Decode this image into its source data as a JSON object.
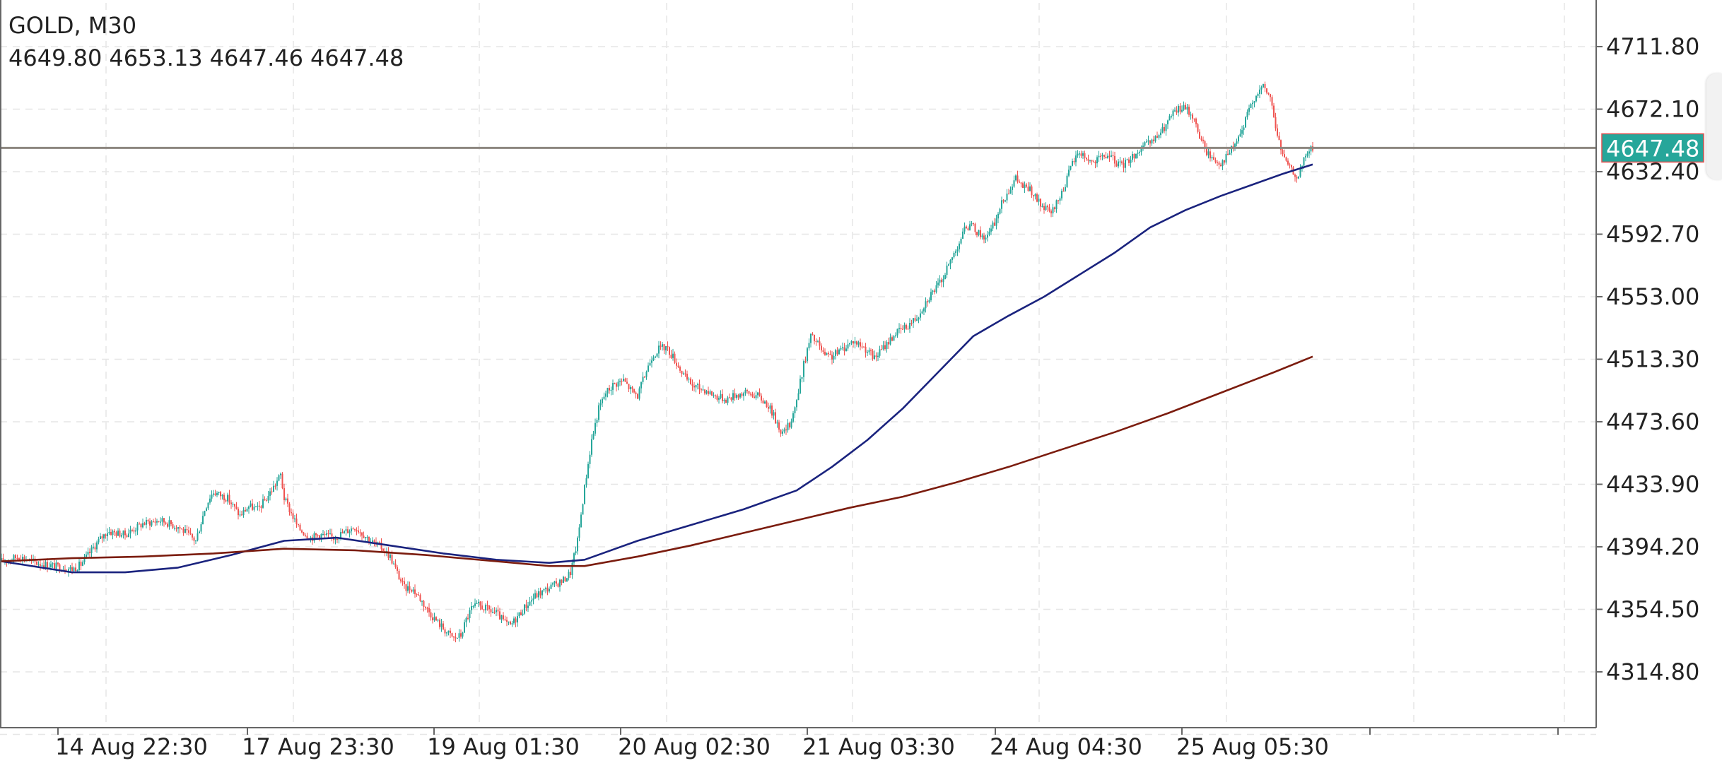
{
  "header": {
    "symbol": "GOLD, M30",
    "ohlc": {
      "open": "4649.80",
      "high": "4653.13",
      "low": "4647.46",
      "close": "4647.48"
    }
  },
  "colors": {
    "bull": "#26a69a",
    "bear": "#ef5350",
    "ma_fast": "#1a237e",
    "ma_slow": "#7b1c0e",
    "price_line": "#8d8780",
    "price_tag_bg": "#26a69a",
    "grid": "#e6e6e6",
    "axis": "#555555"
  },
  "chart_data": {
    "type": "candlestick",
    "symbol": "GOLD",
    "timeframe": "M30",
    "current_price": 4647.48,
    "current_price_label": "4647.48",
    "ylim": [
      4282,
      4734
    ],
    "y_ticks": [
      4711.8,
      4672.1,
      4632.4,
      4592.7,
      4553.0,
      4513.3,
      4473.6,
      4433.9,
      4394.2,
      4354.5,
      4314.8
    ],
    "y_tick_labels": [
      "4711.80",
      "4672.10",
      "4632.40",
      "4592.70",
      "4553.00",
      "4513.30",
      "4473.60",
      "4433.90",
      "4394.20",
      "4354.50",
      "4314.80"
    ],
    "x_tick_labels": [
      "14 Aug 22:30",
      "17 Aug 23:30",
      "19 Aug 01:30",
      "20 Aug 02:30",
      "21 Aug 03:30",
      "24 Aug 04:30",
      "25 Aug 05:30"
    ],
    "grid": true,
    "price_path": [
      [
        0,
        4385
      ],
      [
        10,
        4388
      ],
      [
        20,
        4384
      ],
      [
        30,
        4382
      ],
      [
        40,
        4380
      ],
      [
        45,
        4383
      ],
      [
        55,
        4398
      ],
      [
        60,
        4404
      ],
      [
        70,
        4402
      ],
      [
        80,
        4409
      ],
      [
        90,
        4411
      ],
      [
        100,
        4407
      ],
      [
        110,
        4398
      ],
      [
        115,
        4418
      ],
      [
        118,
        4426
      ],
      [
        120,
        4429
      ],
      [
        128,
        4425
      ],
      [
        135,
        4414
      ],
      [
        140,
        4420
      ],
      [
        145,
        4418
      ],
      [
        150,
        4425
      ],
      [
        155,
        4434
      ],
      [
        158,
        4440
      ],
      [
        160,
        4425
      ],
      [
        168,
        4406
      ],
      [
        175,
        4400
      ],
      [
        180,
        4402
      ],
      [
        188,
        4400
      ],
      [
        195,
        4404
      ],
      [
        200,
        4407
      ],
      [
        205,
        4402
      ],
      [
        210,
        4397
      ],
      [
        215,
        4394
      ],
      [
        220,
        4388
      ],
      [
        225,
        4375
      ],
      [
        228,
        4368
      ],
      [
        232,
        4368
      ],
      [
        236,
        4363
      ],
      [
        240,
        4356
      ],
      [
        244,
        4350
      ],
      [
        248,
        4345
      ],
      [
        252,
        4340
      ],
      [
        256,
        4336
      ],
      [
        260,
        4338
      ],
      [
        263,
        4348
      ],
      [
        266,
        4355
      ],
      [
        270,
        4357
      ],
      [
        276,
        4354
      ],
      [
        280,
        4352
      ],
      [
        285,
        4346
      ],
      [
        288,
        4344
      ],
      [
        292,
        4350
      ],
      [
        297,
        4357
      ],
      [
        302,
        4363
      ],
      [
        308,
        4367
      ],
      [
        313,
        4370
      ],
      [
        318,
        4373
      ],
      [
        322,
        4378
      ],
      [
        326,
        4398
      ],
      [
        330,
        4432
      ],
      [
        334,
        4462
      ],
      [
        338,
        4482
      ],
      [
        342,
        4492
      ],
      [
        346,
        4497
      ],
      [
        352,
        4500
      ],
      [
        356,
        4494
      ],
      [
        360,
        4490
      ],
      [
        364,
        4503
      ],
      [
        368,
        4515
      ],
      [
        372,
        4520
      ],
      [
        376,
        4521
      ],
      [
        380,
        4515
      ],
      [
        384,
        4507
      ],
      [
        388,
        4500
      ],
      [
        392,
        4496
      ],
      [
        398,
        4494
      ],
      [
        404,
        4490
      ],
      [
        410,
        4488
      ],
      [
        416,
        4491
      ],
      [
        422,
        4492
      ],
      [
        428,
        4490
      ],
      [
        434,
        4484
      ],
      [
        438,
        4475
      ],
      [
        442,
        4466
      ],
      [
        446,
        4472
      ],
      [
        450,
        4487
      ],
      [
        454,
        4510
      ],
      [
        458,
        4528
      ],
      [
        462,
        4523
      ],
      [
        466,
        4515
      ],
      [
        470,
        4515
      ],
      [
        476,
        4520
      ],
      [
        482,
        4525
      ],
      [
        488,
        4521
      ],
      [
        494,
        4514
      ],
      [
        500,
        4522
      ],
      [
        506,
        4530
      ],
      [
        512,
        4534
      ],
      [
        518,
        4540
      ],
      [
        522,
        4548
      ],
      [
        526,
        4555
      ],
      [
        530,
        4560
      ],
      [
        534,
        4568
      ],
      [
        538,
        4578
      ],
      [
        542,
        4588
      ],
      [
        546,
        4598
      ],
      [
        550,
        4597
      ],
      [
        554,
        4592
      ],
      [
        558,
        4591
      ],
      [
        562,
        4600
      ],
      [
        566,
        4612
      ],
      [
        570,
        4621
      ],
      [
        574,
        4628
      ],
      [
        578,
        4623
      ],
      [
        582,
        4621
      ],
      [
        586,
        4614
      ],
      [
        590,
        4609
      ],
      [
        594,
        4606
      ],
      [
        598,
        4614
      ],
      [
        602,
        4625
      ],
      [
        606,
        4638
      ],
      [
        610,
        4645
      ],
      [
        614,
        4641
      ],
      [
        618,
        4638
      ],
      [
        622,
        4641
      ],
      [
        626,
        4643
      ],
      [
        630,
        4639
      ],
      [
        634,
        4636
      ],
      [
        640,
        4642
      ],
      [
        646,
        4648
      ],
      [
        652,
        4652
      ],
      [
        658,
        4660
      ],
      [
        662,
        4668
      ],
      [
        666,
        4672
      ],
      [
        670,
        4673
      ],
      [
        674,
        4668
      ],
      [
        678,
        4655
      ],
      [
        682,
        4645
      ],
      [
        686,
        4640
      ],
      [
        690,
        4638
      ],
      [
        694,
        4643
      ],
      [
        698,
        4650
      ],
      [
        702,
        4658
      ],
      [
        706,
        4672
      ],
      [
        710,
        4682
      ],
      [
        714,
        4686
      ],
      [
        718,
        4680
      ],
      [
        722,
        4655
      ],
      [
        726,
        4640
      ],
      [
        730,
        4633
      ],
      [
        734,
        4629
      ],
      [
        738,
        4643
      ],
      [
        742,
        4648
      ]
    ],
    "series": [
      {
        "name": "",
        "color_key": "ma_fast",
        "points": [
          [
            0,
            4385
          ],
          [
            40,
            4378
          ],
          [
            70,
            4378
          ],
          [
            100,
            4381
          ],
          [
            130,
            4389
          ],
          [
            160,
            4398
          ],
          [
            190,
            4400
          ],
          [
            220,
            4395
          ],
          [
            250,
            4390
          ],
          [
            280,
            4386
          ],
          [
            310,
            4384
          ],
          [
            330,
            4386
          ],
          [
            360,
            4398
          ],
          [
            390,
            4408
          ],
          [
            420,
            4418
          ],
          [
            450,
            4430
          ],
          [
            470,
            4445
          ],
          [
            490,
            4462
          ],
          [
            510,
            4482
          ],
          [
            530,
            4505
          ],
          [
            550,
            4528
          ],
          [
            570,
            4541
          ],
          [
            590,
            4553
          ],
          [
            610,
            4567
          ],
          [
            630,
            4581
          ],
          [
            650,
            4597
          ],
          [
            670,
            4608
          ],
          [
            690,
            4617
          ],
          [
            710,
            4625
          ],
          [
            725,
            4631
          ],
          [
            742,
            4637
          ]
        ]
      },
      {
        "name": "",
        "color_key": "ma_slow",
        "points": [
          [
            0,
            4385
          ],
          [
            40,
            4387
          ],
          [
            80,
            4388
          ],
          [
            120,
            4390
          ],
          [
            160,
            4393
          ],
          [
            200,
            4392
          ],
          [
            240,
            4389
          ],
          [
            280,
            4385
          ],
          [
            310,
            4382
          ],
          [
            330,
            4382
          ],
          [
            360,
            4388
          ],
          [
            390,
            4395
          ],
          [
            420,
            4403
          ],
          [
            450,
            4411
          ],
          [
            480,
            4419
          ],
          [
            510,
            4426
          ],
          [
            540,
            4435
          ],
          [
            570,
            4445
          ],
          [
            600,
            4456
          ],
          [
            630,
            4467
          ],
          [
            660,
            4479
          ],
          [
            690,
            4492
          ],
          [
            720,
            4505
          ],
          [
            742,
            4515
          ]
        ]
      }
    ]
  }
}
